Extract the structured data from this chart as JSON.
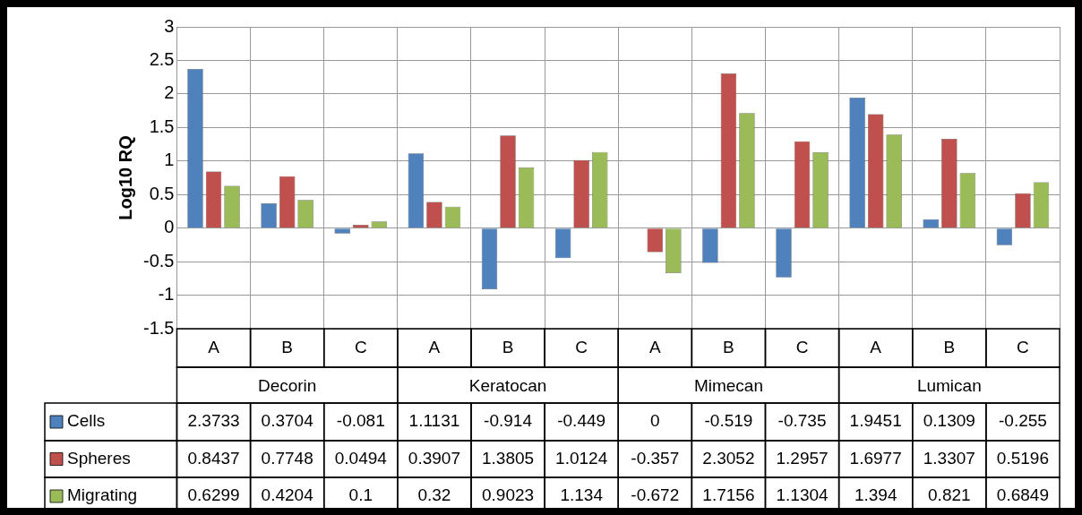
{
  "chart_data": {
    "type": "bar",
    "ylabel": "Log10 RQ",
    "categories": [
      "A",
      "B",
      "C",
      "A",
      "B",
      "C",
      "A",
      "B",
      "C",
      "A",
      "B",
      "C"
    ],
    "annotations": [
      "Decorin",
      "Keratocan",
      "Mimecan",
      "Lumican"
    ],
    "series": [
      {
        "name": "Cells",
        "color": "#4f81bd",
        "values": [
          2.3733,
          0.3704,
          -0.081,
          1.1131,
          -0.914,
          -0.449,
          0,
          -0.519,
          -0.735,
          1.9451,
          0.1309,
          -0.255
        ]
      },
      {
        "name": "Spheres",
        "color": "#c0504d",
        "values": [
          0.8437,
          0.7748,
          0.0494,
          0.3907,
          1.3805,
          1.0124,
          -0.357,
          2.3052,
          1.2957,
          1.6977,
          1.3307,
          0.5196
        ]
      },
      {
        "name": "Migrating",
        "color": "#9bbb59",
        "values": [
          0.6299,
          0.4204,
          0.1,
          0.32,
          0.9023,
          1.134,
          -0.672,
          1.7156,
          1.1304,
          1.394,
          0.821,
          0.6849
        ]
      }
    ],
    "ylim": [
      -1.5,
      3
    ],
    "yticks": [
      -1.5,
      -1,
      -0.5,
      0,
      0.5,
      1,
      1.5,
      2,
      2.5,
      3
    ],
    "grid": true,
    "legend": "bottom left",
    "data_labels": true
  }
}
